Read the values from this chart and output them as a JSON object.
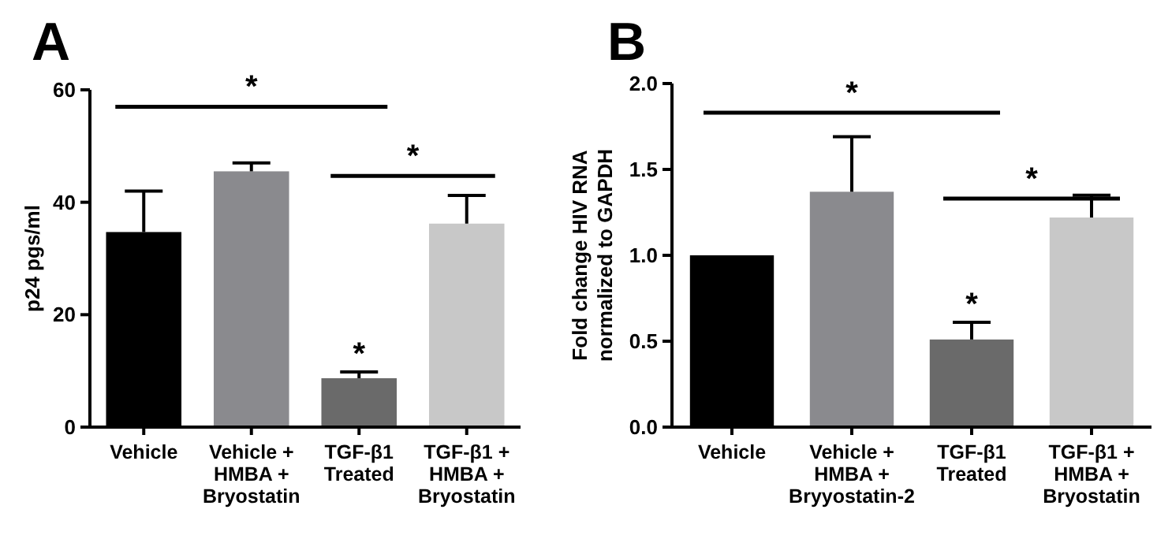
{
  "chart_data": [
    {
      "type": "bar",
      "ylabel": "p24 pgs/ml",
      "categories": [
        "Vehicle",
        "Vehicle +\nHMBA +\nBryostatin",
        "TGF-β1\nTreated",
        "TGF-β1 +\nHMBA +\nBryostatin"
      ],
      "values": [
        34.7,
        45.5,
        8.7,
        36.2
      ],
      "colors": [
        "#000000",
        "#8a8a8e",
        "#6a6a6a",
        "#c8c8c8"
      ],
      "errors": [
        [
          34.7,
          42.0
        ],
        [
          45.5,
          47.0
        ],
        [
          8.7,
          9.8
        ],
        [
          36.2,
          41.2
        ]
      ],
      "ylim": [
        0,
        60
      ],
      "yticks": [
        0,
        20,
        40,
        60
      ],
      "grid": false,
      "annotations": [
        "A",
        "*",
        "*",
        "*"
      ]
    },
    {
      "type": "bar",
      "ylabel": "Fold change HIV RNA\nnormalized to GAPDH",
      "categories": [
        "Vehicle",
        "Vehicle +\nHMBA +\nBryyostatin-2",
        "TGF-β1\nTreated",
        "TGF-β1 +\nHMBA +\nBryostatin"
      ],
      "values": [
        1.0,
        1.37,
        0.51,
        1.22
      ],
      "colors": [
        "#000000",
        "#8a8a8e",
        "#6a6a6a",
        "#c8c8c8"
      ],
      "errors": [
        null,
        [
          1.37,
          1.69
        ],
        [
          0.51,
          0.61
        ],
        [
          1.22,
          1.35
        ]
      ],
      "ylim": [
        0,
        2
      ],
      "yticks": [
        {
          "value": 0,
          "label": "0.0"
        },
        {
          "value": 0.5,
          "label": "0.5"
        },
        {
          "value": 1,
          "label": "1.0"
        },
        {
          "value": 1.5,
          "label": "1.5"
        },
        {
          "value": 2,
          "label": "2.0"
        }
      ],
      "grid": false,
      "annotations": [
        "B",
        "*",
        "*",
        "*"
      ]
    }
  ]
}
